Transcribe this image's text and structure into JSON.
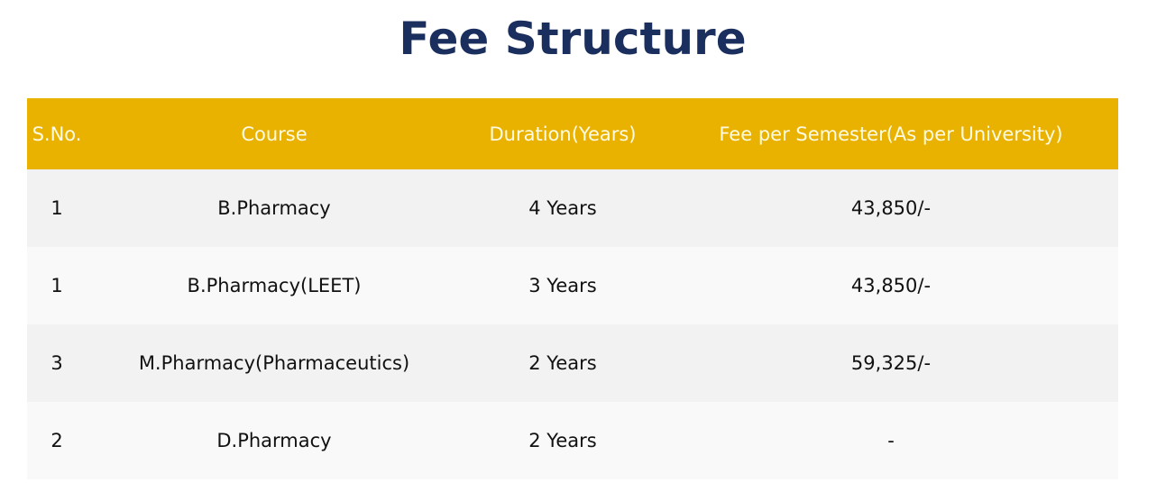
{
  "title": "Fee Structure",
  "colors": {
    "header_bg": "#e9b200",
    "title": "#1b2f5e"
  },
  "table": {
    "headers": [
      "S.No.",
      "Course",
      "Duration(Years)",
      "Fee per Semester(As per University)"
    ],
    "rows": [
      [
        "1",
        "B.Pharmacy",
        "4 Years",
        "43,850/-"
      ],
      [
        "1",
        "B.Pharmacy(LEET)",
        "3 Years",
        "43,850/-"
      ],
      [
        "3",
        "M.Pharmacy(Pharmaceutics)",
        "2 Years",
        "59,325/-"
      ],
      [
        "2",
        "D.Pharmacy",
        "2 Years",
        "-"
      ]
    ]
  }
}
